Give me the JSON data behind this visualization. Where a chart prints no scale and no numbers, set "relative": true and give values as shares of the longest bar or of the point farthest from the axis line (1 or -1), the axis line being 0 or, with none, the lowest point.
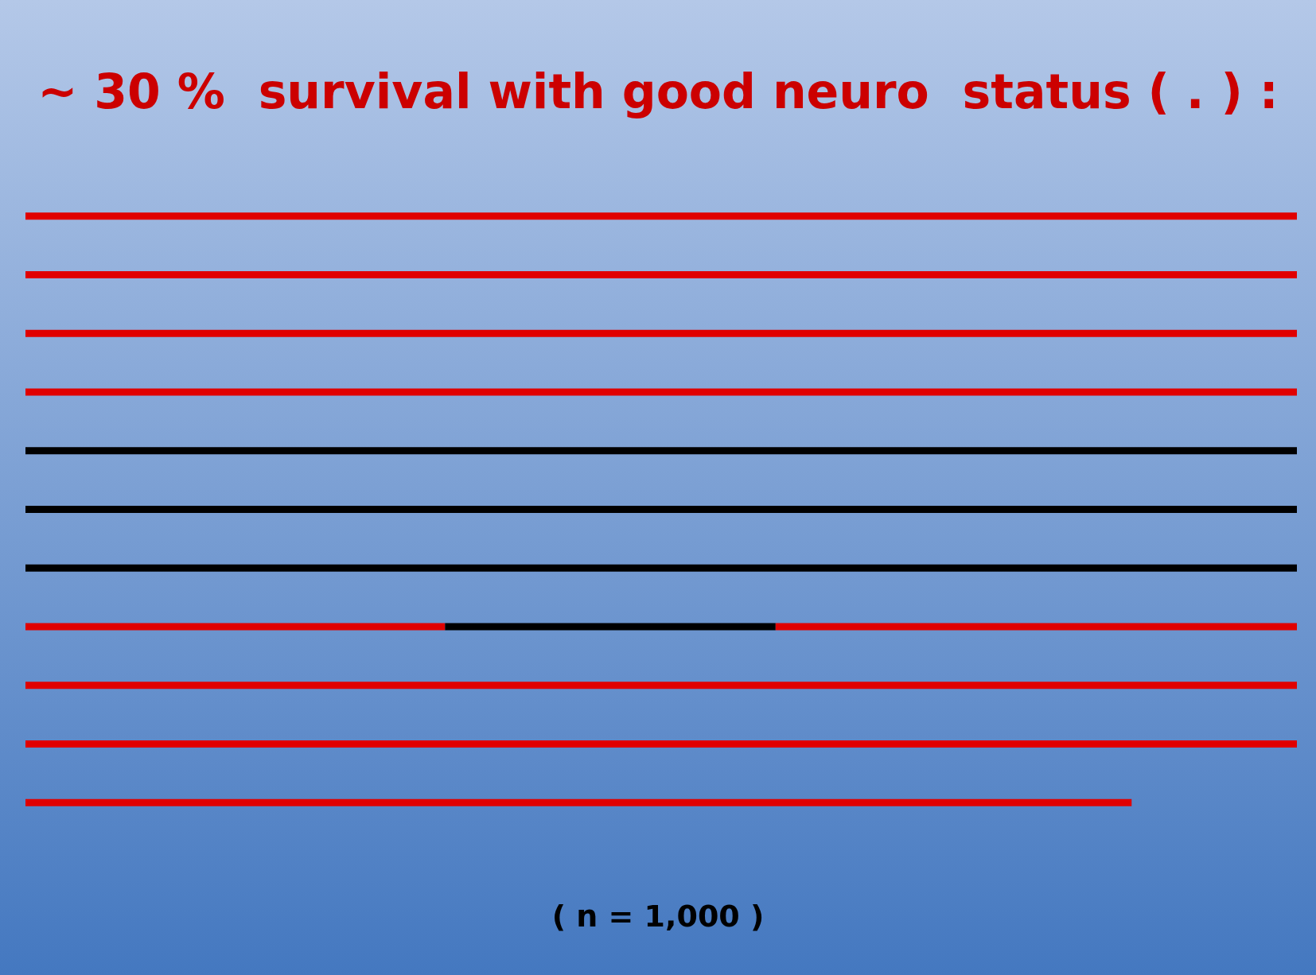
{
  "chart_data": {
    "type": "bar",
    "orientation": "horizontal",
    "stacked": true,
    "relative": true,
    "title": "~ 30 %  survival with good neuro  status ( . ) :",
    "annotations": [
      "( n = 1,000 )"
    ],
    "categories": [
      null,
      null,
      null,
      null,
      null,
      null,
      null,
      null,
      null,
      null,
      null
    ],
    "series": [
      {
        "color": "#e00000",
        "values": [
          1,
          1,
          1,
          1,
          0,
          0,
          0,
          0.33,
          1,
          1,
          0.87
        ]
      },
      {
        "color": "#000000",
        "values": [
          0,
          0,
          0,
          0,
          1,
          1,
          1,
          0.26,
          0,
          0,
          0
        ]
      },
      {
        "color": "#e00000",
        "values": [
          0,
          0,
          0,
          0,
          0,
          0,
          0,
          0.41,
          0,
          0,
          0
        ]
      }
    ]
  }
}
